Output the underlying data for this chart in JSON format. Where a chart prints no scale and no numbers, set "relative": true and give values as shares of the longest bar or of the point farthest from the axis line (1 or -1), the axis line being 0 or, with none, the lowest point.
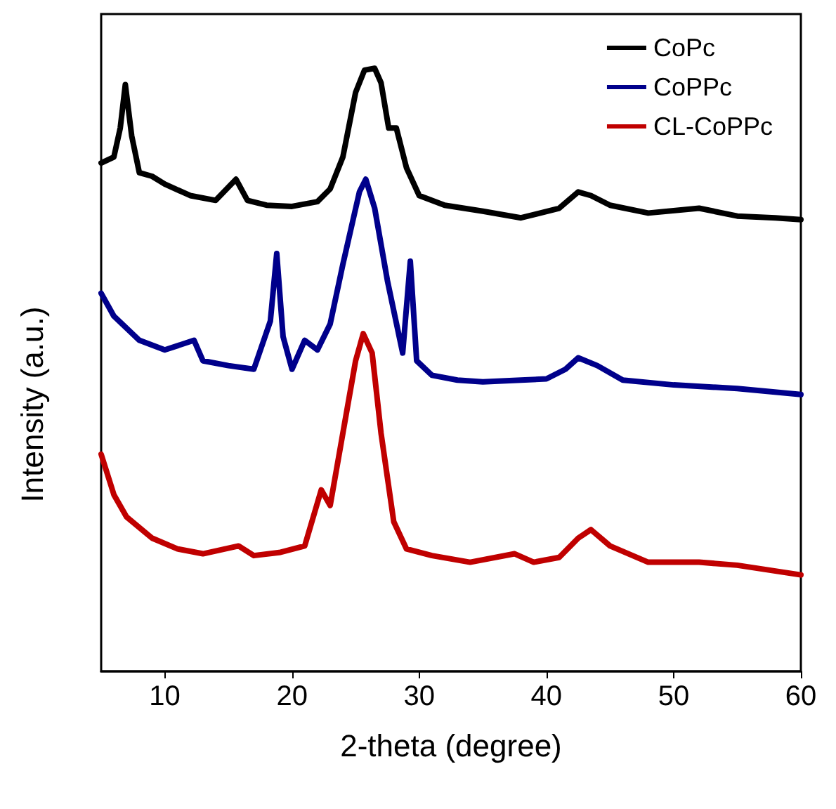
{
  "chart_data": {
    "type": "line",
    "relative": true,
    "xlabel": "2-theta (degree)",
    "ylabel": "Intensity (a.u.)",
    "xlim": [
      5,
      60
    ],
    "xticks": [
      10,
      20,
      30,
      40,
      50,
      60
    ],
    "legend": "top right",
    "marker": "none",
    "line_style": "solid",
    "grid": false,
    "series": [
      {
        "name": "CoPc",
        "color": "#000000",
        "x": [
          5,
          6,
          6.5,
          6.9,
          7.4,
          8,
          9,
          10,
          12,
          14,
          15.6,
          16.5,
          18,
          20,
          22,
          23,
          24,
          25,
          25.7,
          26.5,
          27,
          27.6,
          28.2,
          29,
          30,
          32,
          35,
          38,
          41,
          42.5,
          43.5,
          45,
          48,
          52,
          55,
          58,
          60
        ],
        "values": [
          0.843,
          0.853,
          0.901,
          0.973,
          0.888,
          0.827,
          0.821,
          0.808,
          0.789,
          0.781,
          0.816,
          0.781,
          0.773,
          0.771,
          0.779,
          0.8,
          0.853,
          0.96,
          0.997,
          1,
          0.976,
          0.901,
          0.901,
          0.835,
          0.789,
          0.773,
          0.763,
          0.752,
          0.768,
          0.795,
          0.789,
          0.773,
          0.76,
          0.768,
          0.755,
          0.752,
          0.749
        ]
      },
      {
        "name": "CoPPc",
        "color": "#00008b",
        "x": [
          5,
          6,
          8,
          10,
          12.3,
          13,
          15,
          17,
          18.3,
          18.8,
          19.3,
          20,
          21,
          22,
          23,
          24,
          25.3,
          25.8,
          26.5,
          27.5,
          28.7,
          29.3,
          29.8,
          31,
          33,
          35,
          38,
          40,
          41.5,
          42.5,
          44,
          46,
          50,
          55,
          60
        ],
        "values": [
          0.627,
          0.589,
          0.549,
          0.533,
          0.549,
          0.515,
          0.507,
          0.501,
          0.581,
          0.693,
          0.555,
          0.501,
          0.549,
          0.533,
          0.576,
          0.675,
          0.795,
          0.816,
          0.768,
          0.648,
          0.528,
          0.68,
          0.515,
          0.491,
          0.483,
          0.48,
          0.483,
          0.485,
          0.501,
          0.52,
          0.507,
          0.483,
          0.475,
          0.469,
          0.459
        ]
      },
      {
        "name": "CL-CoPPc",
        "color": "#c00000",
        "x": [
          5,
          6,
          7,
          9,
          11,
          13,
          15.8,
          17,
          19,
          21,
          22.3,
          23,
          24,
          25,
          25.6,
          26.3,
          27,
          28,
          29,
          31,
          34,
          37.5,
          39,
          41,
          42.5,
          43.5,
          45,
          48,
          52,
          55,
          60
        ],
        "values": [
          0.36,
          0.293,
          0.256,
          0.221,
          0.203,
          0.195,
          0.208,
          0.192,
          0.197,
          0.208,
          0.301,
          0.275,
          0.395,
          0.515,
          0.56,
          0.528,
          0.395,
          0.248,
          0.203,
          0.192,
          0.181,
          0.195,
          0.181,
          0.189,
          0.221,
          0.235,
          0.208,
          0.181,
          0.181,
          0.176,
          0.16
        ]
      }
    ]
  }
}
